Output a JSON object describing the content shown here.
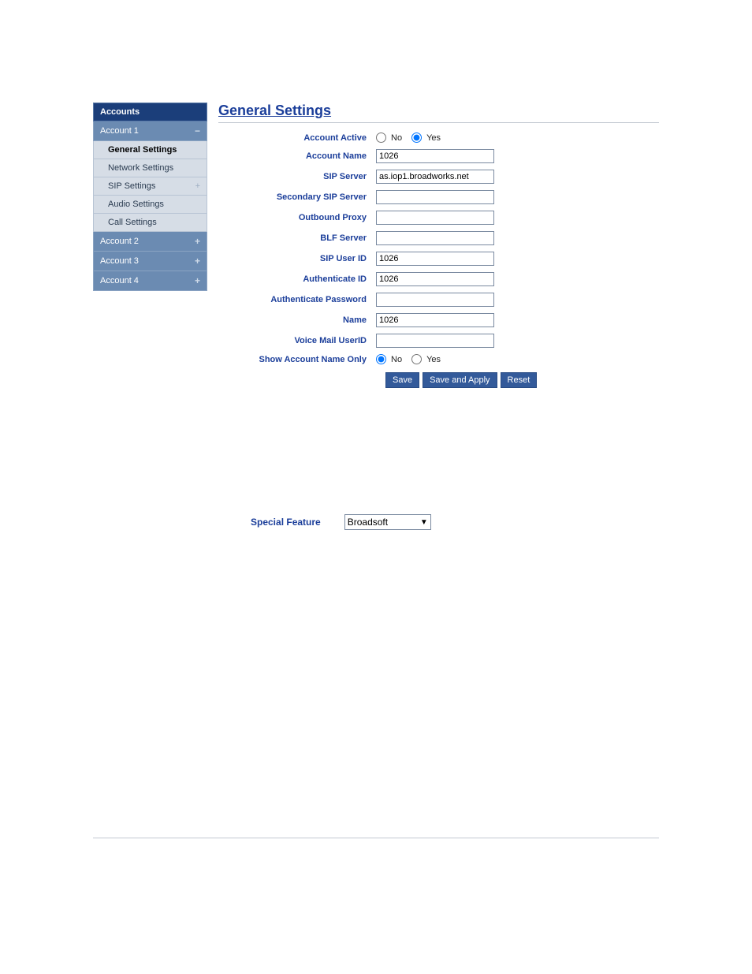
{
  "sidebar": {
    "title": "Accounts",
    "accounts": [
      {
        "label": "Account 1",
        "expanded": true,
        "expand_icon": "−",
        "items": [
          {
            "label": "General Settings",
            "active": true
          },
          {
            "label": "Network Settings",
            "active": false
          },
          {
            "label": "SIP Settings",
            "active": false,
            "expandable": true
          },
          {
            "label": "Audio Settings",
            "active": false
          },
          {
            "label": "Call Settings",
            "active": false
          }
        ]
      },
      {
        "label": "Account 2",
        "expanded": false,
        "expand_icon": "+"
      },
      {
        "label": "Account 3",
        "expanded": false,
        "expand_icon": "+"
      },
      {
        "label": "Account 4",
        "expanded": false,
        "expand_icon": "+"
      }
    ]
  },
  "main": {
    "title": "General Settings",
    "form": {
      "account_active": {
        "label": "Account Active",
        "no_label": "No",
        "yes_label": "Yes",
        "value": "yes"
      },
      "account_name": {
        "label": "Account Name",
        "value": "1026"
      },
      "sip_server": {
        "label": "SIP Server",
        "value": "as.iop1.broadworks.net"
      },
      "secondary_sip_server": {
        "label": "Secondary SIP Server",
        "value": ""
      },
      "outbound_proxy": {
        "label": "Outbound Proxy",
        "value": ""
      },
      "blf_server": {
        "label": "BLF Server",
        "value": ""
      },
      "sip_user_id": {
        "label": "SIP User ID",
        "value": "1026"
      },
      "authenticate_id": {
        "label": "Authenticate ID",
        "value": "1026"
      },
      "authenticate_password": {
        "label": "Authenticate Password",
        "value": ""
      },
      "name": {
        "label": "Name",
        "value": "1026"
      },
      "voice_mail_userid": {
        "label": "Voice Mail UserID",
        "value": ""
      },
      "show_account_name_only": {
        "label": "Show Account Name Only",
        "no_label": "No",
        "yes_label": "Yes",
        "value": "no"
      }
    },
    "buttons": {
      "save": "Save",
      "save_apply": "Save and Apply",
      "reset": "Reset"
    }
  },
  "special": {
    "label": "Special Feature",
    "selected": "Broadsoft"
  }
}
